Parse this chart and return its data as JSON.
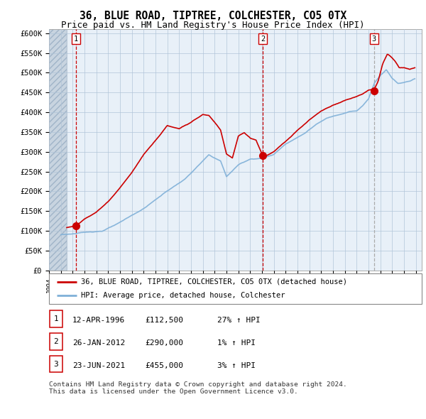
{
  "title": "36, BLUE ROAD, TIPTREE, COLCHESTER, CO5 0TX",
  "subtitle": "Price paid vs. HM Land Registry's House Price Index (HPI)",
  "ylabel_ticks": [
    "£0",
    "£50K",
    "£100K",
    "£150K",
    "£200K",
    "£250K",
    "£300K",
    "£350K",
    "£400K",
    "£450K",
    "£500K",
    "£550K",
    "£600K"
  ],
  "ytick_vals": [
    0,
    50000,
    100000,
    150000,
    200000,
    250000,
    300000,
    350000,
    400000,
    450000,
    500000,
    550000,
    600000
  ],
  "ylim": [
    0,
    610000
  ],
  "sale_dates_num": [
    1996.29,
    2012.07,
    2021.47
  ],
  "sale_prices": [
    112500,
    290000,
    455000
  ],
  "sale_labels": [
    "1",
    "2",
    "3"
  ],
  "vline_colors": [
    "#cc0000",
    "#cc0000",
    "#aaaaaa"
  ],
  "sale_color": "#cc0000",
  "hpi_color": "#7fb0d8",
  "legend_line1": "36, BLUE ROAD, TIPTREE, COLCHESTER, CO5 0TX (detached house)",
  "legend_line2": "HPI: Average price, detached house, Colchester",
  "table_rows": [
    [
      "1",
      "12-APR-1996",
      "£112,500",
      "27% ↑ HPI"
    ],
    [
      "2",
      "26-JAN-2012",
      "£290,000",
      "1% ↑ HPI"
    ],
    [
      "3",
      "23-JUN-2021",
      "£455,000",
      "3% ↑ HPI"
    ]
  ],
  "footnote": "Contains HM Land Registry data © Crown copyright and database right 2024.\nThis data is licensed under the Open Government Licence v3.0.",
  "bg_color": "#dce8f5",
  "chart_bg": "#e8f0f8",
  "hatch_color": "#c8d4e0",
  "grid_color": "#b0c4d8",
  "title_fontsize": 10.5,
  "subtitle_fontsize": 9
}
